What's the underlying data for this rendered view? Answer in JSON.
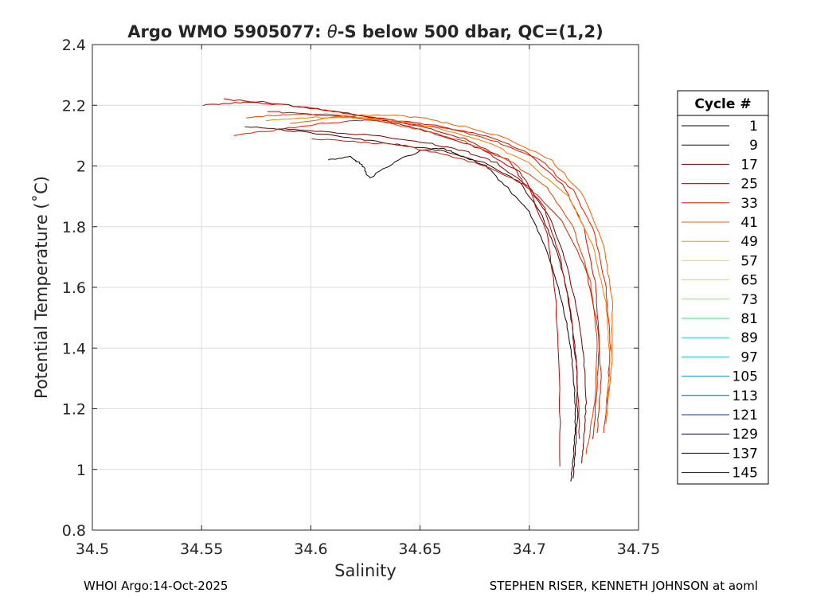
{
  "chart_data": {
    "type": "line",
    "title_prefix": "Argo WMO 5905077: ",
    "title_symbol": "θ",
    "title_suffix": "-S below 500 dbar,  QC=(1,2)",
    "xlabel": "Salinity",
    "ylabel": "Potential Temperature (˚C)",
    "xlim": [
      34.5,
      34.75
    ],
    "ylim": [
      0.8,
      2.4
    ],
    "xticks": [
      "34.5",
      "34.55",
      "34.6",
      "34.65",
      "34.7",
      "34.75"
    ],
    "yticks": [
      "0.8",
      "1",
      "1.2",
      "1.4",
      "1.6",
      "1.8",
      "2",
      "2.2",
      "2.4"
    ],
    "grid": true,
    "legend": {
      "title": "Cycle #",
      "placement": "right",
      "entries": [
        {
          "label": "1",
          "color": "#1a0000"
        },
        {
          "label": "9",
          "color": "#400000"
        },
        {
          "label": "17",
          "color": "#730000"
        },
        {
          "label": "25",
          "color": "#b30000"
        },
        {
          "label": "33",
          "color": "#e61a00"
        },
        {
          "label": "41",
          "color": "#f06000"
        },
        {
          "label": "49",
          "color": "#f0a000"
        },
        {
          "label": "57",
          "color": "#f5e600"
        },
        {
          "label": "65",
          "color": "#c8f000"
        },
        {
          "label": "73",
          "color": "#80f040"
        },
        {
          "label": "81",
          "color": "#30e080"
        },
        {
          "label": "89",
          "color": "#20d0b0"
        },
        {
          "label": "97",
          "color": "#20c0d0"
        },
        {
          "label": "105",
          "color": "#1090c0"
        },
        {
          "label": "113",
          "color": "#1060a0"
        },
        {
          "label": "121",
          "color": "#103080"
        },
        {
          "label": "129",
          "color": "#101060"
        },
        {
          "label": "137",
          "color": "#100850"
        },
        {
          "label": "145",
          "color": "#0a0a40"
        }
      ]
    },
    "series": [
      {
        "color": "#1a0000",
        "x": [
          34.608,
          34.618,
          34.624,
          34.627,
          34.64,
          34.65,
          34.66,
          34.67,
          34.68,
          34.69,
          34.7,
          34.708,
          34.714,
          34.718,
          34.72,
          34.721,
          34.721,
          34.72,
          34.719
        ],
        "y": [
          2.02,
          2.03,
          2.0,
          1.96,
          2.02,
          2.05,
          2.06,
          2.03,
          2.0,
          1.93,
          1.85,
          1.72,
          1.58,
          1.45,
          1.33,
          1.22,
          1.12,
          1.03,
          0.96
        ]
      },
      {
        "color": "#400000",
        "x": [
          34.585,
          34.6,
          34.62,
          34.64,
          34.66,
          34.68,
          34.695,
          34.705,
          34.712,
          34.717,
          34.72,
          34.722,
          34.722,
          34.721,
          34.72
        ],
        "y": [
          2.12,
          2.11,
          2.09,
          2.07,
          2.05,
          2.01,
          1.95,
          1.85,
          1.73,
          1.6,
          1.46,
          1.32,
          1.18,
          1.06,
          0.97
        ]
      },
      {
        "color": "#730000",
        "x": [
          34.57,
          34.59,
          34.61,
          34.63,
          34.65,
          34.67,
          34.685,
          34.7,
          34.71,
          34.717,
          34.722,
          34.725,
          34.726,
          34.725,
          34.724
        ],
        "y": [
          2.13,
          2.12,
          2.11,
          2.1,
          2.08,
          2.05,
          2.01,
          1.93,
          1.82,
          1.68,
          1.52,
          1.36,
          1.22,
          1.1,
          1.02
        ]
      },
      {
        "color": "#b30000",
        "x": [
          34.56,
          34.58,
          34.6,
          34.62,
          34.64,
          34.66,
          34.68,
          34.695,
          34.707,
          34.714,
          34.719,
          34.722,
          34.723
        ],
        "y": [
          2.22,
          2.21,
          2.19,
          2.17,
          2.14,
          2.1,
          2.05,
          1.98,
          1.86,
          1.7,
          1.52,
          1.3,
          1.1
        ]
      },
      {
        "color": "#c00000",
        "x": [
          34.55,
          34.57,
          34.59,
          34.61,
          34.63,
          34.65,
          34.67,
          34.69,
          34.7,
          34.708,
          34.712,
          34.714,
          34.714
        ],
        "y": [
          2.2,
          2.21,
          2.2,
          2.18,
          2.16,
          2.13,
          2.09,
          2.02,
          1.92,
          1.78,
          1.58,
          1.3,
          1.01
        ]
      },
      {
        "color": "#d01000",
        "x": [
          34.58,
          34.6,
          34.62,
          34.64,
          34.66,
          34.68,
          34.7,
          34.715,
          34.725,
          34.73,
          34.732,
          34.731,
          34.729
        ],
        "y": [
          2.18,
          2.17,
          2.16,
          2.15,
          2.13,
          2.1,
          2.04,
          1.94,
          1.8,
          1.62,
          1.44,
          1.26,
          1.1
        ]
      },
      {
        "color": "#e61a00",
        "x": [
          34.565,
          34.585,
          34.605,
          34.625,
          34.645,
          34.665,
          34.685,
          34.705,
          34.72,
          34.73,
          34.735,
          34.737,
          34.736,
          34.734
        ],
        "y": [
          2.1,
          2.12,
          2.14,
          2.15,
          2.14,
          2.12,
          2.08,
          2.02,
          1.92,
          1.78,
          1.6,
          1.42,
          1.26,
          1.12
        ]
      },
      {
        "color": "#f06000",
        "x": [
          34.59,
          34.61,
          34.63,
          34.65,
          34.67,
          34.69,
          34.71,
          34.725,
          34.734,
          34.738,
          34.738,
          34.735
        ],
        "y": [
          2.14,
          2.16,
          2.17,
          2.16,
          2.13,
          2.09,
          2.02,
          1.9,
          1.74,
          1.56,
          1.36,
          1.15
        ]
      },
      {
        "color": "#e04000",
        "x": [
          34.57,
          34.59,
          34.61,
          34.63,
          34.65,
          34.67,
          34.69,
          34.708,
          34.72,
          34.728,
          34.731,
          34.73,
          34.726
        ],
        "y": [
          2.16,
          2.17,
          2.17,
          2.15,
          2.12,
          2.08,
          2.02,
          1.93,
          1.8,
          1.62,
          1.42,
          1.22,
          1.05
        ]
      },
      {
        "color": "#c02000",
        "x": [
          34.6,
          34.62,
          34.64,
          34.66,
          34.68,
          34.7,
          34.715,
          34.726,
          34.731,
          34.733,
          34.731
        ],
        "y": [
          2.09,
          2.08,
          2.07,
          2.04,
          2.0,
          1.93,
          1.82,
          1.66,
          1.48,
          1.3,
          1.12
        ]
      },
      {
        "color": "#f08000",
        "x": [
          34.58,
          34.6,
          34.62,
          34.64,
          34.66,
          34.68,
          34.7,
          34.718,
          34.729,
          34.735,
          34.737,
          34.735
        ],
        "y": [
          2.15,
          2.16,
          2.16,
          2.15,
          2.12,
          2.08,
          2.01,
          1.9,
          1.74,
          1.55,
          1.36,
          1.18
        ]
      }
    ]
  },
  "footer": {
    "left": "WHOI Argo:14-Oct-2025",
    "right": "STEPHEN RISER, KENNETH JOHNSON at aoml"
  }
}
